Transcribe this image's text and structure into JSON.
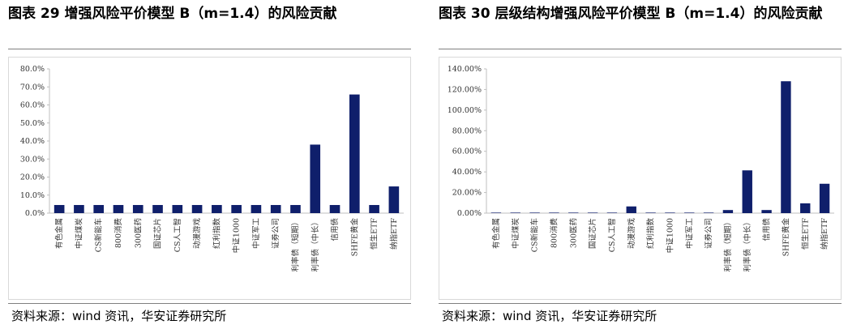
{
  "panels": [
    {
      "title": "图表 29  增强风险平价模型 B（m=1.4）的风险贡献",
      "source": "资料来源：wind 资讯，华安证券研究所",
      "chart_data": {
        "type": "bar",
        "categories": [
          "有色金属",
          "中证煤炭",
          "CS新能车",
          "800消费",
          "300医药",
          "国证芯片",
          "CS人工智",
          "动漫游戏",
          "红利指数",
          "中证1000",
          "中证军工",
          "证券公司",
          "利率债（短期）",
          "利率债（中长）",
          "信用债",
          "SHFE黄金",
          "恒生ETF",
          "纳指ETF"
        ],
        "values": [
          4.5,
          4.5,
          4.5,
          4.5,
          4.5,
          4.5,
          4.5,
          4.5,
          4.5,
          4.5,
          4.5,
          4.5,
          4.5,
          38.0,
          4.5,
          65.8,
          4.5,
          14.8
        ],
        "ylim": [
          0,
          80
        ],
        "yticks": [
          "0.0%",
          "10.0%",
          "20.0%",
          "30.0%",
          "40.0%",
          "50.0%",
          "60.0%",
          "70.0%",
          "80.0%"
        ],
        "bar_color": "#0f1f6b"
      }
    },
    {
      "title": "图表 30  层级结构增强风险平价模型 B（m=1.4）的风险贡献",
      "source": "资料来源：wind 资讯，华安证券研究所",
      "chart_data": {
        "type": "bar",
        "categories": [
          "有色金属",
          "中证煤炭",
          "CS新能车",
          "800消费",
          "300医药",
          "国证芯片",
          "CS人工智",
          "动漫游戏",
          "红利指数",
          "中证1000",
          "中证军工",
          "证券公司",
          "利率债（短期）",
          "利率债（中长）",
          "信用债",
          "SHFE黄金",
          "恒生ETF",
          "纳指ETF"
        ],
        "values": [
          0.5,
          0.5,
          0.5,
          0.5,
          0.5,
          0.5,
          0.5,
          6.5,
          0.5,
          0.5,
          0.5,
          0.5,
          3.0,
          41.5,
          3.0,
          128.0,
          9.5,
          28.5
        ],
        "ylim": [
          0,
          140
        ],
        "yticks": [
          "0.00%",
          "20.00%",
          "40.00%",
          "60.00%",
          "80.00%",
          "100.00%",
          "120.00%",
          "140.00%"
        ],
        "bar_color": "#0f1f6b"
      }
    }
  ]
}
